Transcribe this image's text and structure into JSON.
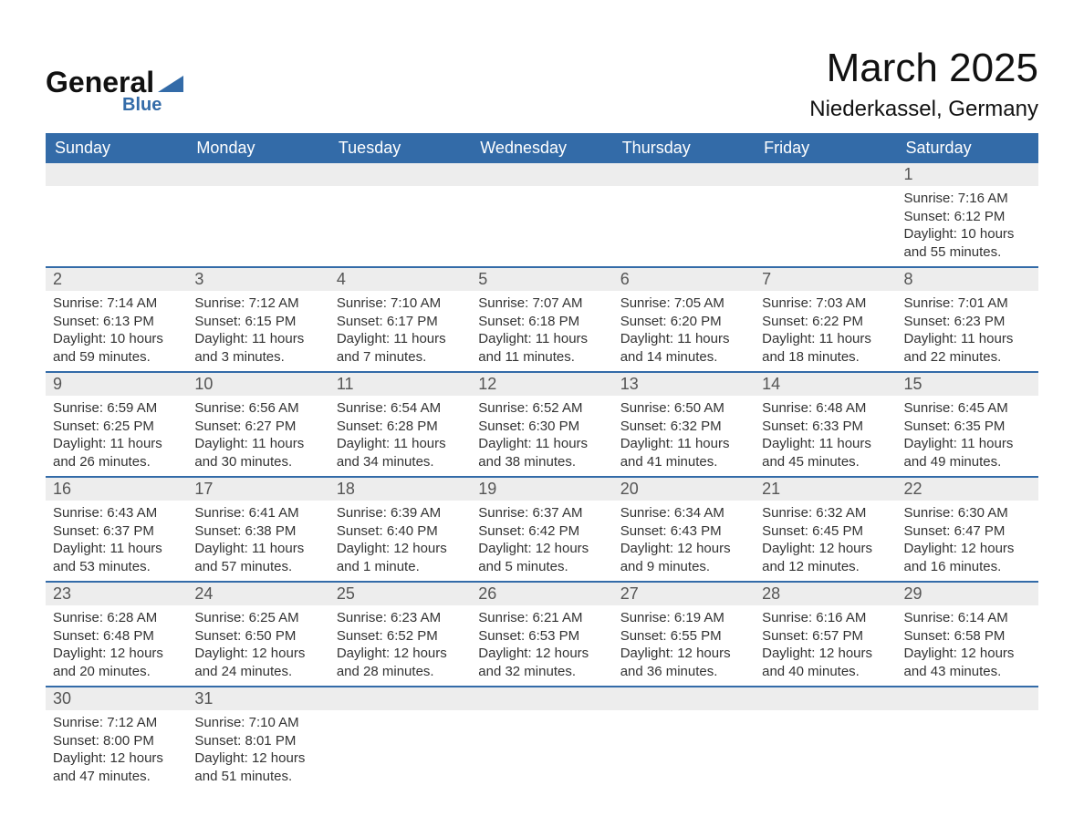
{
  "logo": {
    "text_main": "General",
    "text_sub": "Blue"
  },
  "title": "March 2025",
  "location": "Niederkassel, Germany",
  "colors": {
    "header_bg": "#336ba8",
    "header_text": "#ffffff",
    "daynum_bg": "#ededed",
    "row_border": "#336ba8",
    "page_bg": "#ffffff",
    "body_text": "#333333"
  },
  "typography": {
    "title_fontsize": 44,
    "location_fontsize": 24,
    "header_fontsize": 18,
    "daynum_fontsize": 18,
    "body_fontsize": 15,
    "font_family": "Arial"
  },
  "weekdays": [
    "Sunday",
    "Monday",
    "Tuesday",
    "Wednesday",
    "Thursday",
    "Friday",
    "Saturday"
  ],
  "labels": {
    "sunrise": "Sunrise: ",
    "sunset": "Sunset: ",
    "daylight": "Daylight: "
  },
  "weeks": [
    [
      null,
      null,
      null,
      null,
      null,
      null,
      {
        "n": "1",
        "sr": "7:16 AM",
        "ss": "6:12 PM",
        "dl": "10 hours and 55 minutes."
      }
    ],
    [
      {
        "n": "2",
        "sr": "7:14 AM",
        "ss": "6:13 PM",
        "dl": "10 hours and 59 minutes."
      },
      {
        "n": "3",
        "sr": "7:12 AM",
        "ss": "6:15 PM",
        "dl": "11 hours and 3 minutes."
      },
      {
        "n": "4",
        "sr": "7:10 AM",
        "ss": "6:17 PM",
        "dl": "11 hours and 7 minutes."
      },
      {
        "n": "5",
        "sr": "7:07 AM",
        "ss": "6:18 PM",
        "dl": "11 hours and 11 minutes."
      },
      {
        "n": "6",
        "sr": "7:05 AM",
        "ss": "6:20 PM",
        "dl": "11 hours and 14 minutes."
      },
      {
        "n": "7",
        "sr": "7:03 AM",
        "ss": "6:22 PM",
        "dl": "11 hours and 18 minutes."
      },
      {
        "n": "8",
        "sr": "7:01 AM",
        "ss": "6:23 PM",
        "dl": "11 hours and 22 minutes."
      }
    ],
    [
      {
        "n": "9",
        "sr": "6:59 AM",
        "ss": "6:25 PM",
        "dl": "11 hours and 26 minutes."
      },
      {
        "n": "10",
        "sr": "6:56 AM",
        "ss": "6:27 PM",
        "dl": "11 hours and 30 minutes."
      },
      {
        "n": "11",
        "sr": "6:54 AM",
        "ss": "6:28 PM",
        "dl": "11 hours and 34 minutes."
      },
      {
        "n": "12",
        "sr": "6:52 AM",
        "ss": "6:30 PM",
        "dl": "11 hours and 38 minutes."
      },
      {
        "n": "13",
        "sr": "6:50 AM",
        "ss": "6:32 PM",
        "dl": "11 hours and 41 minutes."
      },
      {
        "n": "14",
        "sr": "6:48 AM",
        "ss": "6:33 PM",
        "dl": "11 hours and 45 minutes."
      },
      {
        "n": "15",
        "sr": "6:45 AM",
        "ss": "6:35 PM",
        "dl": "11 hours and 49 minutes."
      }
    ],
    [
      {
        "n": "16",
        "sr": "6:43 AM",
        "ss": "6:37 PM",
        "dl": "11 hours and 53 minutes."
      },
      {
        "n": "17",
        "sr": "6:41 AM",
        "ss": "6:38 PM",
        "dl": "11 hours and 57 minutes."
      },
      {
        "n": "18",
        "sr": "6:39 AM",
        "ss": "6:40 PM",
        "dl": "12 hours and 1 minute."
      },
      {
        "n": "19",
        "sr": "6:37 AM",
        "ss": "6:42 PM",
        "dl": "12 hours and 5 minutes."
      },
      {
        "n": "20",
        "sr": "6:34 AM",
        "ss": "6:43 PM",
        "dl": "12 hours and 9 minutes."
      },
      {
        "n": "21",
        "sr": "6:32 AM",
        "ss": "6:45 PM",
        "dl": "12 hours and 12 minutes."
      },
      {
        "n": "22",
        "sr": "6:30 AM",
        "ss": "6:47 PM",
        "dl": "12 hours and 16 minutes."
      }
    ],
    [
      {
        "n": "23",
        "sr": "6:28 AM",
        "ss": "6:48 PM",
        "dl": "12 hours and 20 minutes."
      },
      {
        "n": "24",
        "sr": "6:25 AM",
        "ss": "6:50 PM",
        "dl": "12 hours and 24 minutes."
      },
      {
        "n": "25",
        "sr": "6:23 AM",
        "ss": "6:52 PM",
        "dl": "12 hours and 28 minutes."
      },
      {
        "n": "26",
        "sr": "6:21 AM",
        "ss": "6:53 PM",
        "dl": "12 hours and 32 minutes."
      },
      {
        "n": "27",
        "sr": "6:19 AM",
        "ss": "6:55 PM",
        "dl": "12 hours and 36 minutes."
      },
      {
        "n": "28",
        "sr": "6:16 AM",
        "ss": "6:57 PM",
        "dl": "12 hours and 40 minutes."
      },
      {
        "n": "29",
        "sr": "6:14 AM",
        "ss": "6:58 PM",
        "dl": "12 hours and 43 minutes."
      }
    ],
    [
      {
        "n": "30",
        "sr": "7:12 AM",
        "ss": "8:00 PM",
        "dl": "12 hours and 47 minutes."
      },
      {
        "n": "31",
        "sr": "7:10 AM",
        "ss": "8:01 PM",
        "dl": "12 hours and 51 minutes."
      },
      null,
      null,
      null,
      null,
      null
    ]
  ]
}
